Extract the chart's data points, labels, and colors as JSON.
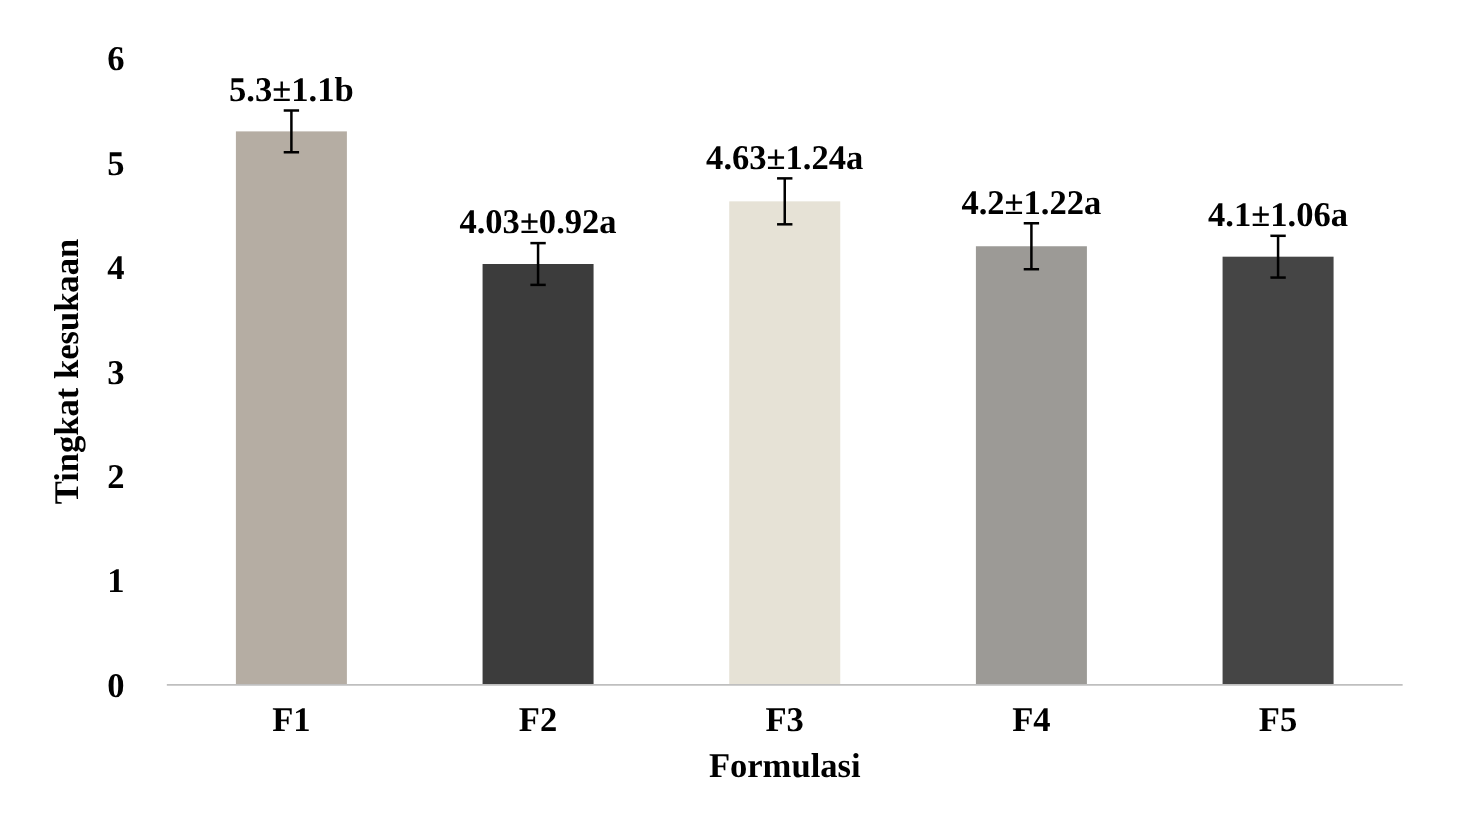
{
  "chart_data": {
    "type": "bar",
    "xlabel": "Formulasi",
    "ylabel": "Tingkat kesukaan",
    "categories": [
      "F1",
      "F2",
      "F3",
      "F4",
      "F5"
    ],
    "values": [
      5.3,
      4.03,
      4.63,
      4.2,
      4.1
    ],
    "colors": [
      "#b5ada3",
      "#3c3c3c",
      "#e6e2d6",
      "#9c9a96",
      "#454545"
    ],
    "errors": [
      0.2,
      0.2,
      0.22,
      0.22,
      0.2
    ],
    "value_labels": [
      "5.3±1.1b",
      "4.03±0.92a",
      "4.63±1.24a",
      "4.2±1.22a",
      "4.1±1.06a"
    ],
    "ylim": [
      0,
      6
    ],
    "yticks": [
      0,
      1,
      2,
      3,
      4,
      5,
      6
    ]
  }
}
